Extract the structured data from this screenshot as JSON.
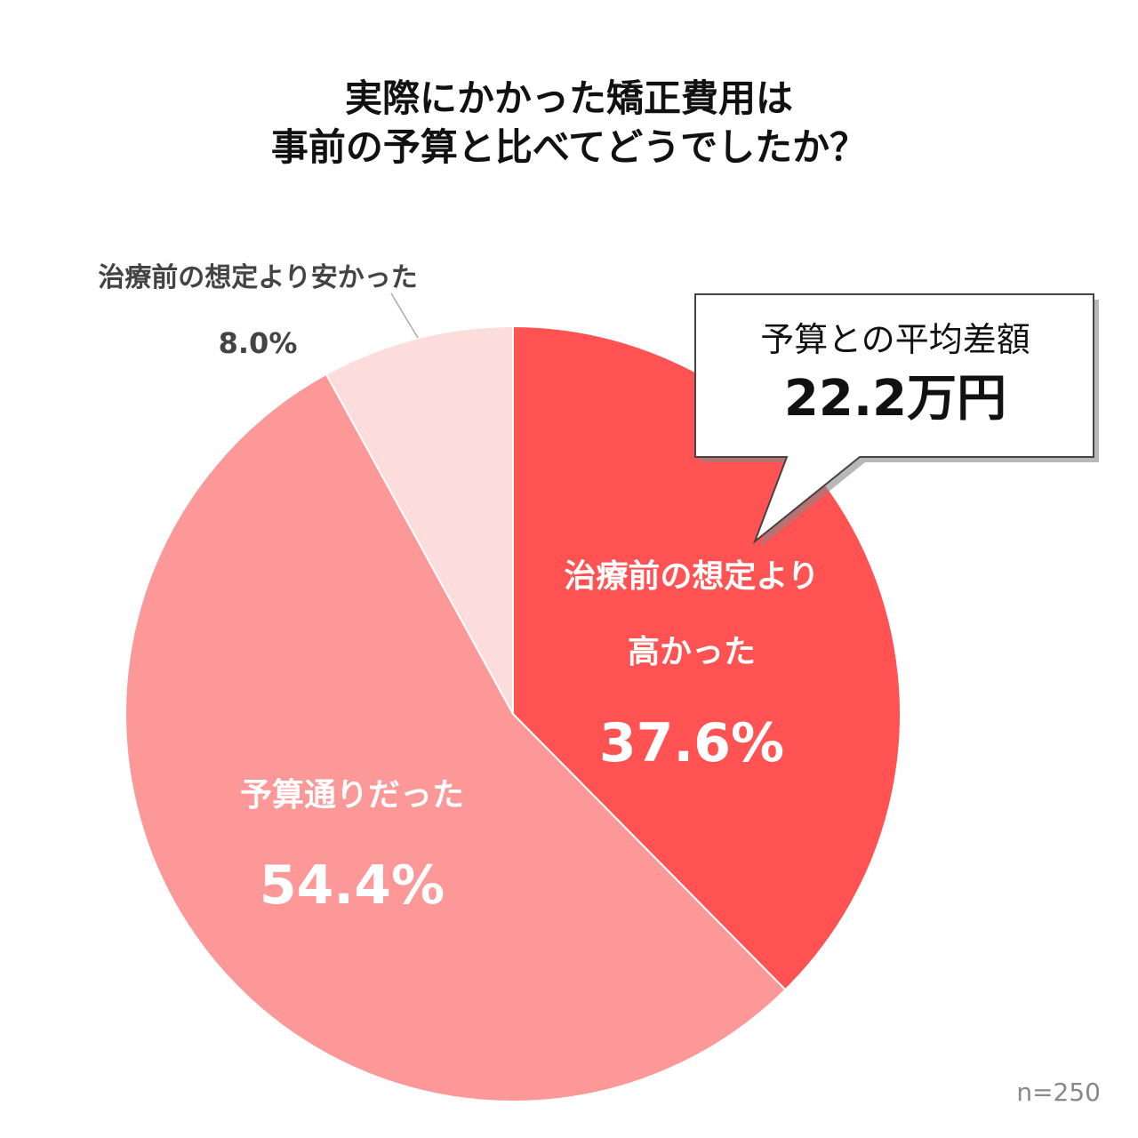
{
  "chart_data": {
    "type": "pie",
    "title_lines": [
      "実際にかかった矯正費用は",
      "事前の予算と比べてどうでしたか？"
    ],
    "slices": [
      {
        "label_lines": [
          "治療前の想定より",
          "高かった"
        ],
        "value": 37.6,
        "value_label": "37.6%",
        "color": "#ff5252"
      },
      {
        "label_lines": [
          "予算通りだった"
        ],
        "value": 54.4,
        "value_label": "54.4%",
        "color": "#fc9898"
      },
      {
        "label_lines": [
          "治療前の想定より安かった"
        ],
        "value": 8.0,
        "value_label": "8.0%",
        "color": "#fddcdc"
      }
    ],
    "callout": {
      "line1": "予算との平均差額",
      "line2": "22.2万円"
    },
    "sample_size": "n=250"
  }
}
